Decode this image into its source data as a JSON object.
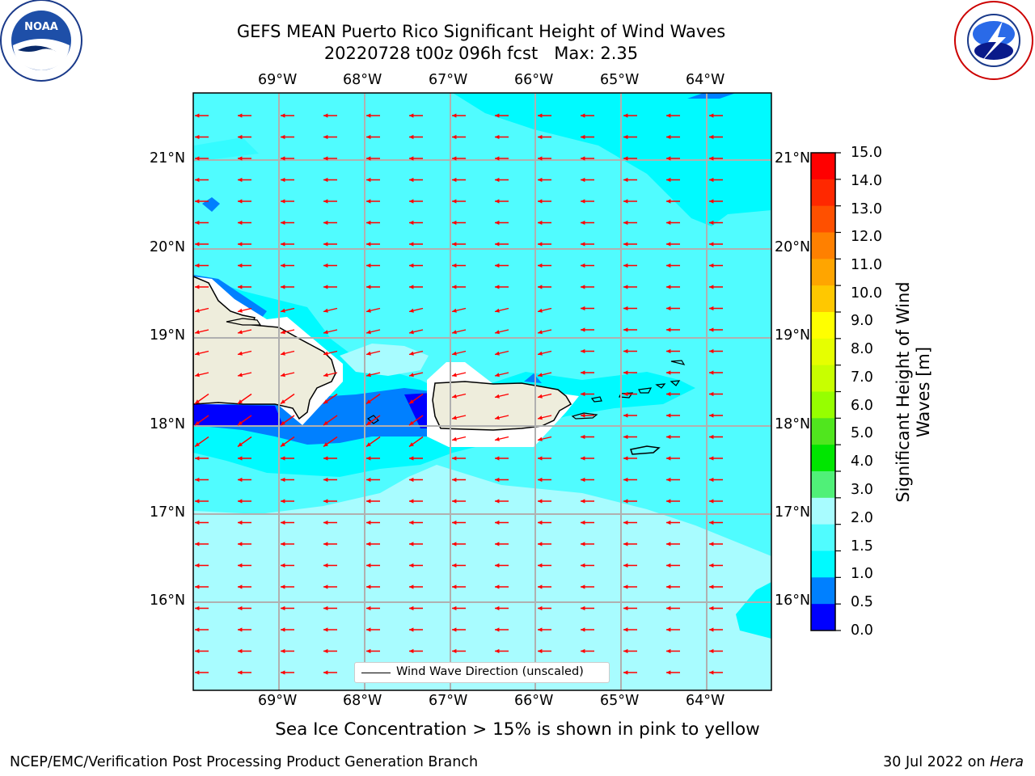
{
  "title": {
    "line1": "GEFS MEAN Puerto Rico Significant Height of Wind Waves",
    "line2": "20220728 t00z 096h fcst   Max: 2.35"
  },
  "logos": {
    "left": {
      "name": "NOAA",
      "ring_text": "NATIONAL OCEANIC AND ATMOSPHERIC ADMINISTRATION · U.S. DEPARTMENT OF COMMERCE"
    },
    "right": {
      "name": "NATIONAL WEATHER SERVICE"
    }
  },
  "map": {
    "lon_labels": [
      "69°W",
      "68°W",
      "67°W",
      "66°W",
      "65°W",
      "64°W"
    ],
    "lat_labels_left": [
      "21°N",
      "20°N",
      "19°N",
      "18°N",
      "17°N",
      "16°N"
    ],
    "lat_labels_right": [
      "21°N",
      "20°N",
      "19°N",
      "18°N",
      "17°N",
      "16°N"
    ],
    "lon_range": [
      -70.0,
      -63.25
    ],
    "lat_range": [
      15.0,
      21.75
    ],
    "wave_direction_arrows": {
      "color": "#ff0000",
      "direction": "westward, slightly southwest near the islands"
    },
    "legend": {
      "label": "Wind Wave Direction (unscaled)"
    }
  },
  "colorbar": {
    "label": "Significant Height of Wind Waves [m]",
    "ticks": [
      "15.0",
      "14.0",
      "13.0",
      "12.0",
      "11.0",
      "10.0",
      "9.0",
      "8.0",
      "7.0",
      "6.0",
      "5.0",
      "4.0",
      "3.0",
      "2.0",
      "1.5",
      "1.0",
      "0.5",
      "0.0"
    ],
    "colors": [
      "#ff0000",
      "#ff2800",
      "#ff5000",
      "#ff8000",
      "#ffa500",
      "#ffc800",
      "#ffff00",
      "#e6ff00",
      "#c8ff00",
      "#96ff00",
      "#50e61e",
      "#00e600",
      "#50f078",
      "#a8fcff",
      "#50fcff",
      "#00faff",
      "#0080ff",
      "#0000ff"
    ]
  },
  "notes": {
    "sea_ice": "Sea Ice Concentration > 15% is shown in pink to yellow"
  },
  "footer": {
    "left": "NCEP/EMC/Verification Post Processing Product Generation Branch",
    "date": "30 Jul 2022 on",
    "machine": "Hera"
  }
}
